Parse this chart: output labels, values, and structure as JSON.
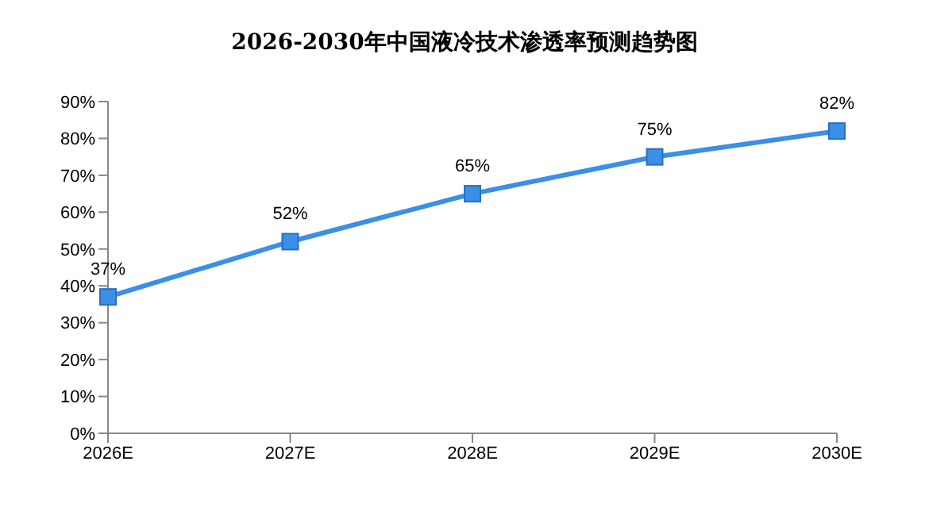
{
  "chart_data": {
    "type": "line",
    "title": "2026-2030年中国液冷技术渗透率预测趋势图",
    "categories": [
      "2026E",
      "2027E",
      "2028E",
      "2029E",
      "2030E"
    ],
    "values": [
      37,
      52,
      65,
      75,
      82
    ],
    "value_labels": [
      "37%",
      "52%",
      "65%",
      "75%",
      "82%"
    ],
    "color": "#3b8fe8",
    "marker": "square",
    "line_style": "solid",
    "grid": false,
    "legend": false,
    "ylim": [
      0,
      90
    ],
    "yticks": [
      {
        "value": 0,
        "label": "0%"
      },
      {
        "value": 10,
        "label": "10%"
      },
      {
        "value": 20,
        "label": "20%"
      },
      {
        "value": 30,
        "label": "30%"
      },
      {
        "value": 40,
        "label": "40%"
      },
      {
        "value": 50,
        "label": "50%"
      },
      {
        "value": 60,
        "label": "60%"
      },
      {
        "value": 70,
        "label": "70%"
      },
      {
        "value": 80,
        "label": "80%"
      },
      {
        "value": 90,
        "label": "90%"
      }
    ]
  }
}
